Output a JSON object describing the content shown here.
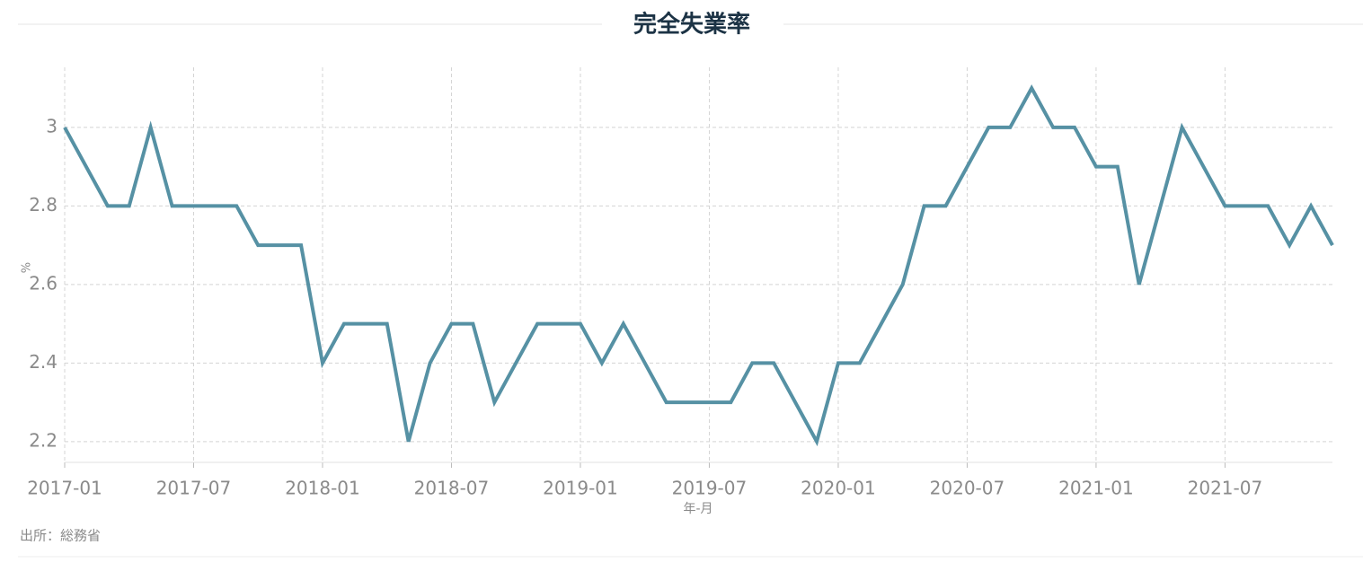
{
  "chart_data": {
    "type": "line",
    "title": "完全失業率",
    "y_label": "%",
    "x_label": "年-月",
    "source": "出所：総務省",
    "x": [
      "2017-01",
      "2017-02",
      "2017-03",
      "2017-04",
      "2017-05",
      "2017-06",
      "2017-07",
      "2017-08",
      "2017-09",
      "2017-10",
      "2017-11",
      "2017-12",
      "2018-01",
      "2018-02",
      "2018-03",
      "2018-04",
      "2018-05",
      "2018-06",
      "2018-07",
      "2018-08",
      "2018-09",
      "2018-10",
      "2018-11",
      "2018-12",
      "2019-01",
      "2019-02",
      "2019-03",
      "2019-04",
      "2019-05",
      "2019-06",
      "2019-07",
      "2019-08",
      "2019-09",
      "2019-10",
      "2019-11",
      "2019-12",
      "2020-01",
      "2020-02",
      "2020-03",
      "2020-04",
      "2020-05",
      "2020-06",
      "2020-07",
      "2020-08",
      "2020-09",
      "2020-10",
      "2020-11",
      "2020-12",
      "2021-01",
      "2021-02",
      "2021-03",
      "2021-04",
      "2021-05",
      "2021-06",
      "2021-07",
      "2021-08",
      "2021-09",
      "2021-10",
      "2021-11",
      "2021-12"
    ],
    "series": [
      {
        "color": "#5691a4",
        "values": [
          3.0,
          2.9,
          2.8,
          2.8,
          3.0,
          2.8,
          2.8,
          2.8,
          2.8,
          2.7,
          2.7,
          2.7,
          2.4,
          2.5,
          2.5,
          2.5,
          2.2,
          2.4,
          2.5,
          2.5,
          2.3,
          2.4,
          2.5,
          2.5,
          2.5,
          2.4,
          2.5,
          2.4,
          2.3,
          2.3,
          2.3,
          2.3,
          2.4,
          2.4,
          2.3,
          2.2,
          2.4,
          2.4,
          2.5,
          2.6,
          2.8,
          2.8,
          2.9,
          3.0,
          3.0,
          3.1,
          3.0,
          3.0,
          2.9,
          2.9,
          2.6,
          2.8,
          3.0,
          2.9,
          2.8,
          2.8,
          2.8,
          2.7,
          2.8,
          2.7
        ]
      }
    ],
    "xlim": [
      "2017-01",
      "2021-12"
    ],
    "xticks": [
      "2017-01",
      "2017-07",
      "2018-01",
      "2018-07",
      "2019-01",
      "2019-07",
      "2020-01",
      "2020-07",
      "2021-01",
      "2021-07"
    ],
    "ylim": [
      2.147,
      3.153
    ],
    "yticks": [
      2.2,
      2.4,
      2.6,
      2.8,
      3
    ],
    "grid": true
  }
}
